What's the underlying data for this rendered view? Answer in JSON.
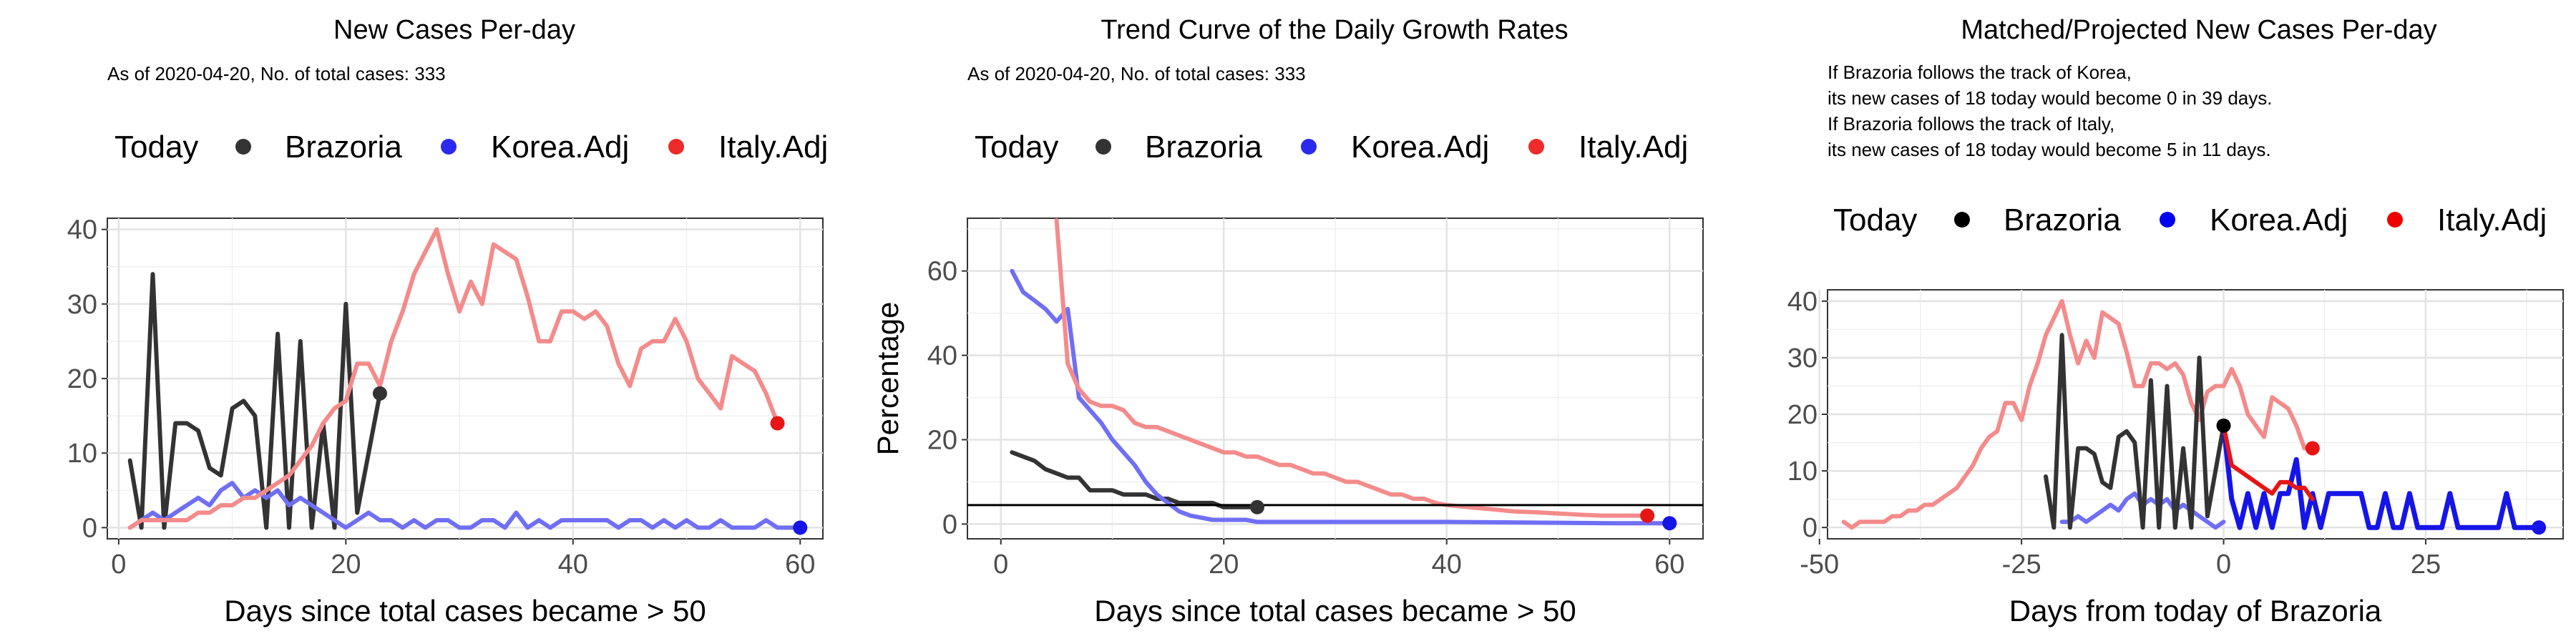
{
  "colors": {
    "brazoria": "#333333",
    "korea": "#6f6ff5",
    "italy": "#f48b8b",
    "korea_strong": "#1515e8",
    "italy_strong": "#e81515",
    "black_strong": "#000000"
  },
  "legend_labels": [
    "Today",
    "Brazoria",
    "Korea.Adj",
    "Italy.Adj"
  ],
  "chart_data": [
    {
      "type": "line",
      "title": "New Cases Per-day",
      "subtitle": [
        "As of 2020-04-20, No. of total cases: 333"
      ],
      "xlabel": "Days since total cases became > 50",
      "ylabel": "",
      "xlim": [
        -1,
        62
      ],
      "ylim": [
        -1.5,
        41.5
      ],
      "xticks": [
        0,
        20,
        40,
        60
      ],
      "yticks": [
        0,
        10,
        20,
        30,
        40
      ],
      "legend_position": "top",
      "grid": true,
      "series": [
        {
          "name": "Brazoria",
          "color_key": "brazoria",
          "width": 6,
          "x": [
            1,
            2,
            3,
            4,
            5,
            6,
            7,
            8,
            9,
            10,
            11,
            12,
            13,
            14,
            15,
            16,
            17,
            18,
            19,
            20,
            21,
            22,
            23
          ],
          "y": [
            9,
            0,
            34,
            0,
            14,
            14,
            13,
            8,
            7,
            16,
            17,
            15,
            0,
            26,
            0,
            25,
            0,
            14,
            0,
            30,
            2,
            10,
            18
          ]
        },
        {
          "name": "Korea.Adj",
          "color_key": "korea",
          "width": 6,
          "x": [
            1,
            2,
            3,
            4,
            5,
            6,
            7,
            8,
            9,
            10,
            11,
            12,
            13,
            14,
            15,
            16,
            17,
            18,
            19,
            20,
            21,
            22,
            23,
            24,
            25,
            26,
            27,
            28,
            29,
            30,
            31,
            32,
            33,
            34,
            35,
            36,
            37,
            38,
            39,
            40,
            41,
            42,
            43,
            44,
            45,
            46,
            47,
            48,
            49,
            50,
            51,
            52,
            53,
            54,
            55,
            56,
            57,
            58,
            59,
            60
          ],
          "y": [
            0,
            1,
            2,
            1,
            2,
            3,
            4,
            3,
            5,
            6,
            4,
            5,
            4,
            5,
            3,
            4,
            3,
            2,
            1,
            0,
            1,
            2,
            1,
            1,
            0,
            1,
            0,
            1,
            1,
            0,
            0,
            1,
            1,
            0,
            2,
            0,
            1,
            0,
            1,
            1,
            1,
            1,
            1,
            0,
            1,
            1,
            0,
            1,
            0,
            1,
            0,
            0,
            1,
            0,
            0,
            0,
            1,
            0,
            0,
            0
          ]
        },
        {
          "name": "Italy.Adj",
          "color_key": "italy",
          "width": 6,
          "x": [
            1,
            2,
            3,
            4,
            5,
            6,
            7,
            8,
            9,
            10,
            11,
            12,
            13,
            14,
            15,
            16,
            17,
            18,
            19,
            20,
            21,
            22,
            23,
            24,
            25,
            26,
            27,
            28,
            29,
            30,
            31,
            32,
            33,
            34,
            35,
            36,
            37,
            38,
            39,
            40,
            41,
            42,
            43,
            44,
            45,
            46,
            47,
            48,
            49,
            50,
            51,
            52,
            53,
            54,
            55,
            56,
            57,
            58
          ],
          "y": [
            0,
            1,
            1,
            1,
            1,
            1,
            2,
            2,
            3,
            3,
            4,
            4,
            5,
            6,
            7,
            9,
            11,
            14,
            16,
            17,
            22,
            22,
            19,
            25,
            29,
            34,
            37,
            40,
            34,
            29,
            33,
            30,
            38,
            37,
            36,
            31,
            25,
            25,
            29,
            29,
            28,
            29,
            27,
            22,
            19,
            24,
            25,
            25,
            28,
            25,
            20,
            18,
            16,
            23,
            22,
            21,
            18,
            14
          ]
        }
      ],
      "today_points": [
        {
          "series": "Brazoria",
          "x": 23,
          "y": 18,
          "color_key": "brazoria"
        },
        {
          "series": "Korea.Adj",
          "x": 60,
          "y": 0,
          "color_key": "korea_strong"
        },
        {
          "series": "Italy.Adj",
          "x": 58,
          "y": 14,
          "color_key": "italy_strong"
        }
      ]
    },
    {
      "type": "line",
      "title": "Trend Curve of the Daily Growth Rates",
      "subtitle": [
        "As of 2020-04-20, No. of total cases: 333"
      ],
      "xlabel": "Days since total cases became > 50",
      "ylabel": "Percentage",
      "xlim": [
        -3,
        63
      ],
      "ylim": [
        -3.5,
        72.5
      ],
      "xticks": [
        0,
        20,
        40,
        60
      ],
      "yticks": [
        0,
        20,
        40,
        60
      ],
      "hline": 4.5,
      "legend_position": "top",
      "grid": true,
      "series": [
        {
          "name": "Brazoria",
          "color_key": "brazoria",
          "width": 6,
          "x": [
            1,
            2,
            3,
            4,
            5,
            6,
            7,
            8,
            9,
            10,
            11,
            12,
            13,
            14,
            15,
            16,
            17,
            18,
            19,
            20,
            21,
            22,
            23
          ],
          "y": [
            17,
            16,
            15,
            13,
            12,
            11,
            11,
            8,
            8,
            8,
            7,
            7,
            7,
            6,
            6,
            5,
            5,
            5,
            5,
            4,
            4,
            4,
            4
          ]
        },
        {
          "name": "Korea.Adj",
          "color_key": "korea",
          "width": 6,
          "x": [
            1,
            2,
            3,
            4,
            5,
            6,
            7,
            8,
            9,
            10,
            11,
            12,
            13,
            14,
            15,
            16,
            17,
            18,
            19,
            20,
            21,
            22,
            23,
            24,
            25,
            26,
            27,
            28,
            29,
            30,
            35,
            40,
            45,
            50,
            55,
            60
          ],
          "y": [
            60,
            55,
            53,
            51,
            48,
            51,
            30,
            27,
            24,
            20,
            17,
            14,
            10,
            7,
            5,
            3,
            2,
            1.5,
            1,
            1,
            1,
            1,
            0.5,
            0.5,
            0.5,
            0.5,
            0.5,
            0.5,
            0.5,
            0.5,
            0.5,
            0.5,
            0.4,
            0.3,
            0.2,
            0.2
          ]
        },
        {
          "name": "Italy.Adj",
          "color_key": "italy",
          "width": 6,
          "x": [
            5,
            5.5,
            6,
            7,
            8,
            9,
            10,
            11,
            12,
            13,
            14,
            15,
            16,
            17,
            18,
            19,
            20,
            21,
            22,
            23,
            24,
            25,
            26,
            27,
            28,
            29,
            30,
            31,
            32,
            33,
            34,
            35,
            36,
            37,
            38,
            39,
            40,
            42,
            44,
            46,
            48,
            50,
            52,
            54,
            56,
            58
          ],
          "y": [
            72,
            55,
            38,
            32,
            29,
            28,
            28,
            27,
            24,
            23,
            23,
            22,
            21,
            20,
            19,
            18,
            17,
            17,
            16,
            16,
            15,
            14,
            14,
            13,
            12,
            12,
            11,
            10,
            10,
            9,
            8,
            7,
            7,
            6,
            6,
            5,
            4.5,
            4,
            3.5,
            3,
            2.8,
            2.5,
            2.2,
            2,
            2,
            2
          ]
        }
      ],
      "today_points": [
        {
          "series": "Brazoria",
          "x": 23,
          "y": 4,
          "color_key": "brazoria"
        },
        {
          "series": "Korea.Adj",
          "x": 60,
          "y": 0.2,
          "color_key": "korea_strong"
        },
        {
          "series": "Italy.Adj",
          "x": 58,
          "y": 2,
          "color_key": "italy_strong"
        }
      ]
    },
    {
      "type": "line",
      "title": "Matched/Projected New Cases Per-day",
      "subtitle": [
        "If Brazoria follows the track of Korea,",
        "its new cases of 18 today would become 0 in 39 days.",
        "If Brazoria follows the track of Italy,",
        "its new cases of 18 today would become 5 in 11 days."
      ],
      "xlabel": "Days from today of Brazoria",
      "ylabel": "",
      "xlim": [
        -49,
        42
      ],
      "ylim": [
        -2,
        42
      ],
      "xticks": [
        -50,
        -25,
        0,
        25
      ],
      "yticks": [
        0,
        10,
        20,
        30,
        40
      ],
      "legend_position": "top",
      "grid": true,
      "series": [
        {
          "name": "Italy.Adj",
          "color_key": "italy",
          "width": 6,
          "x": [
            -47,
            -46,
            -45,
            -44,
            -43,
            -42,
            -41,
            -40,
            -39,
            -38,
            -37,
            -36,
            -35,
            -34,
            -33,
            -32,
            -31,
            -30,
            -29,
            -28,
            -27,
            -26,
            -25,
            -24,
            -23,
            -22,
            -21,
            -20,
            -19,
            -18,
            -17,
            -16,
            -15,
            -14,
            -13,
            -12,
            -11,
            -10,
            -9,
            -8,
            -7,
            -6,
            -5,
            -4,
            -3,
            -2,
            -1,
            0,
            1,
            2,
            3,
            4,
            5,
            6,
            7,
            8,
            9,
            10,
            11
          ],
          "y": [
            1,
            0,
            1,
            1,
            1,
            1,
            2,
            2,
            3,
            3,
            4,
            4,
            5,
            6,
            7,
            9,
            11,
            14,
            16,
            17,
            22,
            22,
            19,
            25,
            29,
            34,
            37,
            40,
            34,
            29,
            33,
            30,
            38,
            37,
            36,
            31,
            25,
            25,
            29,
            29,
            28,
            29,
            27,
            22,
            19,
            24,
            25,
            25,
            28,
            25,
            20,
            18,
            16,
            23,
            22,
            21,
            18,
            14,
            14
          ]
        },
        {
          "name": "Korea.Adj",
          "color_key": "korea",
          "width": 6,
          "x": [
            -20,
            -19,
            -18,
            -17,
            -16,
            -15,
            -14,
            -13,
            -12,
            -11,
            -10,
            -9,
            -8,
            -7,
            -6,
            -5,
            -4,
            -3,
            -2,
            -1,
            0
          ],
          "y": [
            1,
            1,
            2,
            1,
            2,
            3,
            4,
            3,
            5,
            6,
            4,
            5,
            4,
            5,
            3,
            4,
            3,
            2,
            1,
            0,
            1
          ]
        },
        {
          "name": "Brazoria",
          "color_key": "brazoria",
          "width": 6,
          "x": [
            -22,
            -21,
            -20,
            -19,
            -18,
            -17,
            -16,
            -15,
            -14,
            -13,
            -12,
            -11,
            -10,
            -9,
            -8,
            -7,
            -6,
            -5,
            -4,
            -3,
            -2,
            -1,
            0
          ],
          "y": [
            9,
            0,
            34,
            0,
            14,
            14,
            13,
            8,
            7,
            16,
            17,
            15,
            0,
            26,
            0,
            25,
            0,
            14,
            0,
            30,
            2,
            10,
            18
          ]
        },
        {
          "name": "Korea.Adj (projected)",
          "color_key": "korea_strong",
          "width": 7,
          "x": [
            0,
            1,
            2,
            3,
            4,
            5,
            6,
            7,
            8,
            9,
            10,
            11,
            12,
            13,
            14,
            15,
            16,
            17,
            18,
            19,
            20,
            21,
            22,
            23,
            24,
            25,
            26,
            27,
            28,
            29,
            30,
            31,
            32,
            33,
            34,
            35,
            36,
            37,
            38,
            39
          ],
          "y": [
            18,
            5,
            0,
            6,
            0,
            6,
            0,
            6,
            6,
            12,
            0,
            6,
            0,
            6,
            6,
            6,
            6,
            6,
            0,
            0,
            6,
            0,
            0,
            6,
            0,
            0,
            0,
            0,
            6,
            0,
            0,
            0,
            0,
            0,
            0,
            6,
            0,
            0,
            0,
            0
          ]
        },
        {
          "name": "Italy.Adj (projected)",
          "color_key": "italy_strong",
          "width": 6,
          "x": [
            0,
            1,
            2,
            3,
            4,
            5,
            6,
            7,
            8,
            9,
            10,
            11
          ],
          "y": [
            18,
            11,
            10,
            9,
            8,
            7,
            6,
            8,
            8,
            7,
            7,
            5
          ]
        }
      ],
      "today_points": [
        {
          "series": "Brazoria",
          "x": 0,
          "y": 18,
          "color_key": "black_strong"
        },
        {
          "series": "Korea.Adj",
          "x": 39,
          "y": 0,
          "color_key": "korea_strong"
        },
        {
          "series": "Italy.Adj",
          "x": 11,
          "y": 14,
          "color_key": "italy_strong"
        }
      ]
    }
  ]
}
